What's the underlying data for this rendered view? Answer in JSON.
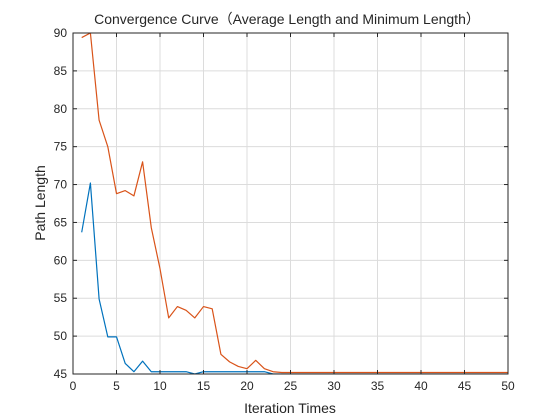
{
  "chart_data": {
    "type": "line",
    "title": "Convergence Curve（Average Length and Minimum Length）",
    "xlabel": "Iteration Times",
    "ylabel": "Path Length",
    "xlim": [
      0,
      50
    ],
    "ylim": [
      45,
      90
    ],
    "xticks": [
      "0",
      "5",
      "10",
      "15",
      "20",
      "25",
      "30",
      "35",
      "40",
      "45",
      "50"
    ],
    "yticks": [
      "45",
      "50",
      "55",
      "60",
      "65",
      "70",
      "75",
      "80",
      "85",
      "90"
    ],
    "grid": true,
    "legend": "none",
    "series": [
      {
        "color": "#0072BD",
        "x": [
          1,
          2,
          3,
          4,
          5,
          6,
          7,
          8,
          9,
          10,
          11,
          12,
          13,
          14,
          15,
          16,
          17,
          18,
          19,
          20,
          21,
          22,
          23,
          24,
          25,
          26,
          27,
          28,
          29,
          30,
          31,
          32,
          33,
          34,
          35,
          36,
          37,
          38,
          39,
          40,
          41,
          42,
          43,
          44,
          45,
          46,
          47,
          48,
          49,
          50
        ],
        "values": [
          63.7,
          70.2,
          54.9,
          49.9,
          49.9,
          46.4,
          45.3,
          46.7,
          45.3,
          45.3,
          45.3,
          45.3,
          45.3,
          45.0,
          45.3,
          45.3,
          45.3,
          45.3,
          45.3,
          45.3,
          45.3,
          45.3,
          45.0,
          45.0,
          45.0,
          45.0,
          45.0,
          45.0,
          45.0,
          45.0,
          45.0,
          45.0,
          45.0,
          45.0,
          45.0,
          45.0,
          45.0,
          45.0,
          45.0,
          45.0,
          45.0,
          45.0,
          45.0,
          45.0,
          45.0,
          45.0,
          45.0,
          45.0,
          45.0,
          45.0
        ]
      },
      {
        "color": "#D95319",
        "x": [
          1,
          2,
          3,
          4,
          5,
          6,
          7,
          8,
          9,
          10,
          11,
          12,
          13,
          14,
          15,
          16,
          17,
          18,
          19,
          20,
          21,
          22,
          23,
          24,
          25,
          26,
          27,
          28,
          29,
          30,
          31,
          32,
          33,
          34,
          35,
          36,
          37,
          38,
          39,
          40,
          41,
          42,
          43,
          44,
          45,
          46,
          47,
          48,
          49,
          50
        ],
        "values": [
          89.4,
          90.0,
          78.5,
          75.0,
          68.8,
          69.2,
          68.5,
          73.0,
          64.3,
          58.9,
          52.4,
          53.9,
          53.4,
          52.4,
          53.9,
          53.6,
          47.6,
          46.6,
          46.0,
          45.7,
          46.8,
          45.7,
          45.3,
          45.2,
          45.2,
          45.2,
          45.2,
          45.2,
          45.2,
          45.2,
          45.2,
          45.2,
          45.2,
          45.2,
          45.2,
          45.2,
          45.2,
          45.2,
          45.2,
          45.2,
          45.2,
          45.2,
          45.2,
          45.2,
          45.2,
          45.2,
          45.2,
          45.2,
          45.2,
          45.2
        ]
      }
    ]
  }
}
